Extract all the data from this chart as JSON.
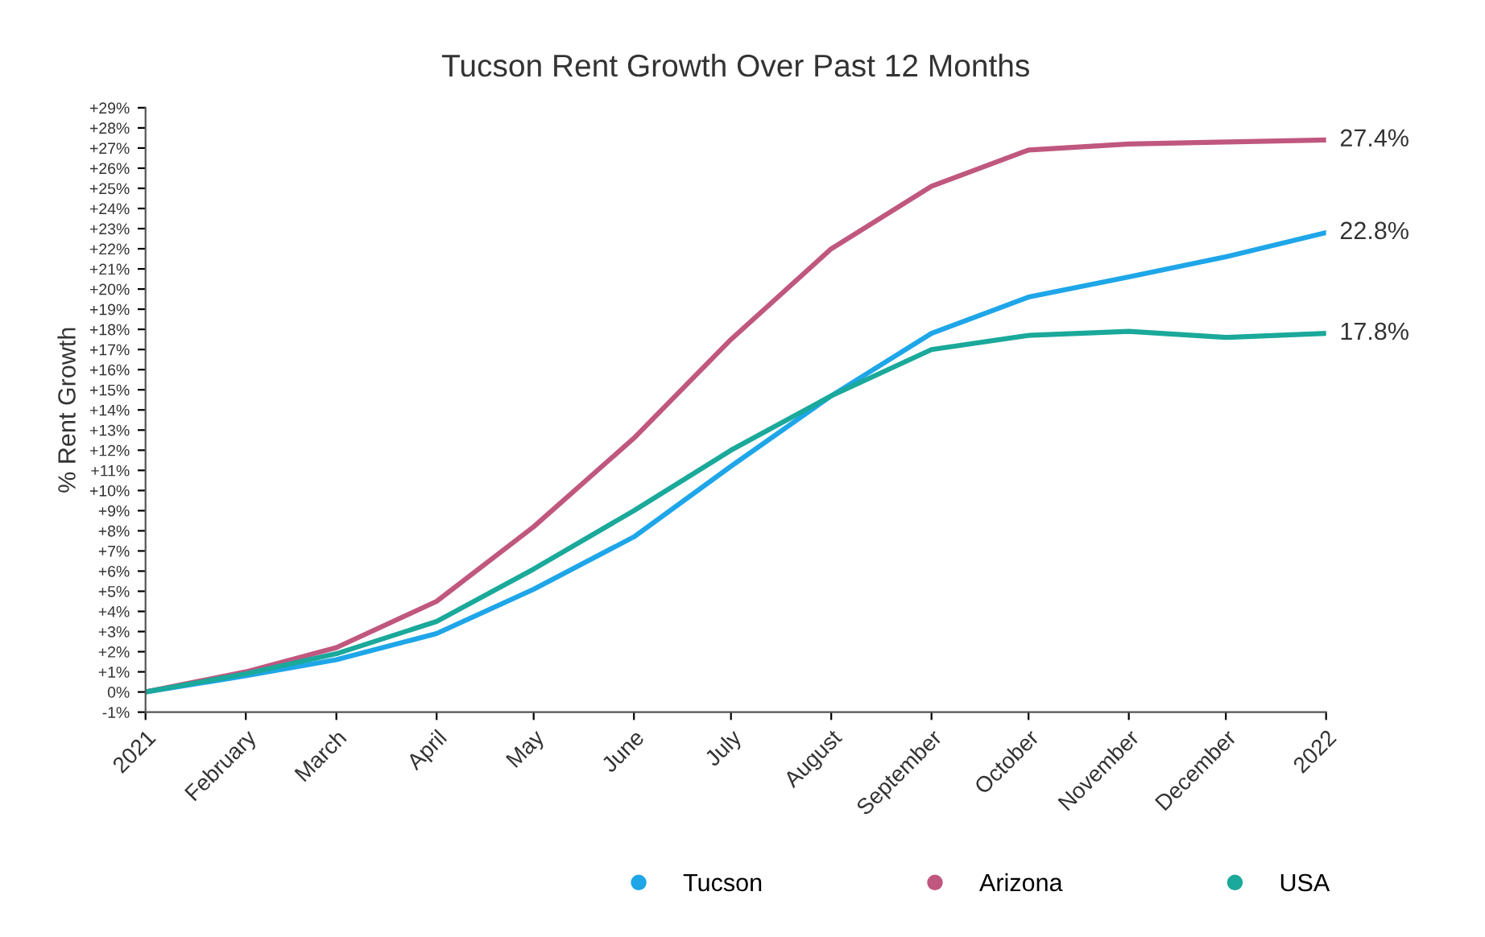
{
  "chart_data": {
    "type": "line",
    "title": "Tucson Rent Growth Over Past 12 Months",
    "ylabel": "% Rent Growth",
    "x": [
      "2021-01",
      "2021-02",
      "2021-03",
      "2021-04",
      "2021-05",
      "2021-06",
      "2021-07",
      "2021-08",
      "2021-09",
      "2021-10",
      "2021-11",
      "2021-12",
      "2022-01"
    ],
    "series": [
      {
        "name": "Tucson",
        "color": "#1ea6e8",
        "values": [
          0,
          0.8,
          1.6,
          2.9,
          5.1,
          7.7,
          11.2,
          14.7,
          17.8,
          19.6,
          20.6,
          21.6,
          22.8
        ]
      },
      {
        "name": "Arizona",
        "color": "#c0577f",
        "values": [
          0,
          1.0,
          2.2,
          4.5,
          8.2,
          12.6,
          17.5,
          22.0,
          25.1,
          26.9,
          27.2,
          27.3,
          27.4
        ]
      },
      {
        "name": "USA",
        "color": "#1aa99a",
        "values": [
          0,
          0.9,
          1.9,
          3.5,
          6.1,
          9.0,
          12.0,
          14.7,
          17.0,
          17.7,
          17.9,
          17.6,
          17.8
        ]
      }
    ],
    "xlim": [
      "2021-01",
      "2022-01"
    ],
    "xticks": [
      {
        "value": "2021-01",
        "label": "2021"
      },
      {
        "value": "2021-02",
        "label": "February"
      },
      {
        "value": "2021-03",
        "label": "March"
      },
      {
        "value": "2021-04",
        "label": "April"
      },
      {
        "value": "2021-05",
        "label": "May"
      },
      {
        "value": "2021-06",
        "label": "June"
      },
      {
        "value": "2021-07",
        "label": "July"
      },
      {
        "value": "2021-08",
        "label": "August"
      },
      {
        "value": "2021-09",
        "label": "September"
      },
      {
        "value": "2021-10",
        "label": "October"
      },
      {
        "value": "2021-11",
        "label": "November"
      },
      {
        "value": "2021-12",
        "label": "December"
      },
      {
        "value": "2022-01",
        "label": "2022"
      }
    ],
    "ylim": [
      -1,
      29
    ],
    "yticks": [
      {
        "value": -1,
        "label": "-1%"
      },
      {
        "value": 0,
        "label": "0%"
      },
      {
        "value": 1,
        "label": "+1%"
      },
      {
        "value": 2,
        "label": "+2%"
      },
      {
        "value": 3,
        "label": "+3%"
      },
      {
        "value": 4,
        "label": "+4%"
      },
      {
        "value": 5,
        "label": "+5%"
      },
      {
        "value": 6,
        "label": "+6%"
      },
      {
        "value": 7,
        "label": "+7%"
      },
      {
        "value": 8,
        "label": "+8%"
      },
      {
        "value": 9,
        "label": "+9%"
      },
      {
        "value": 10,
        "label": "+10%"
      },
      {
        "value": 11,
        "label": "+11%"
      },
      {
        "value": 12,
        "label": "+12%"
      },
      {
        "value": 13,
        "label": "+13%"
      },
      {
        "value": 14,
        "label": "+14%"
      },
      {
        "value": 15,
        "label": "+15%"
      },
      {
        "value": 16,
        "label": "+16%"
      },
      {
        "value": 17,
        "label": "+17%"
      },
      {
        "value": 18,
        "label": "+18%"
      },
      {
        "value": 19,
        "label": "+19%"
      },
      {
        "value": 20,
        "label": "+20%"
      },
      {
        "value": 21,
        "label": "+21%"
      },
      {
        "value": 22,
        "label": "+22%"
      },
      {
        "value": 23,
        "label": "+23%"
      },
      {
        "value": 24,
        "label": "+24%"
      },
      {
        "value": 25,
        "label": "+25%"
      },
      {
        "value": 26,
        "label": "+26%"
      },
      {
        "value": 27,
        "label": "+27%"
      },
      {
        "value": 28,
        "label": "+28%"
      },
      {
        "value": 29,
        "label": "+29%"
      }
    ],
    "annotations": [
      {
        "text": "27.4%",
        "x": "2022-01",
        "y": 27.4
      },
      {
        "text": "22.8%",
        "x": "2022-01",
        "y": 22.8
      },
      {
        "text": "17.8%",
        "x": "2022-01",
        "y": 17.8
      }
    ],
    "grid": false,
    "legend": "bottom",
    "line_style": "solid"
  }
}
